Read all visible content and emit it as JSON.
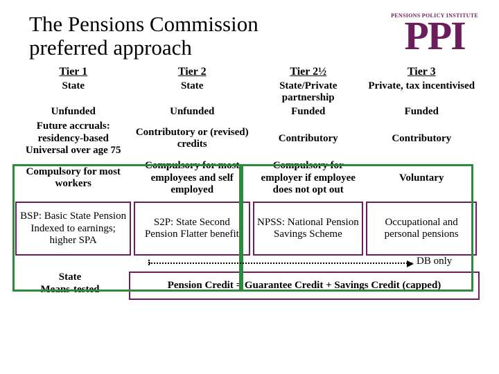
{
  "colors": {
    "brand": "#6b1d5c",
    "frame": "#2d8a3d",
    "text": "#000000",
    "bg": "#ffffff"
  },
  "header": {
    "title_line1": "The Pensions Commission",
    "title_line2": "preferred approach",
    "logo_tag": "PENSIONS POLICY INSTITUTE",
    "logo": "PPI"
  },
  "tiers": {
    "t1": "Tier 1",
    "t2": "Tier 2",
    "t3": "Tier 2½",
    "t4": "Tier 3"
  },
  "provider": {
    "t1": "State",
    "t2": "State",
    "t3": "State/Private partnership",
    "t4": "Private, tax incentivised"
  },
  "funding": {
    "t1": "Unfunded",
    "t2": "Unfunded",
    "t3": "Funded",
    "t4": "Funded"
  },
  "contrib": {
    "t1": "Future accruals: residency-based Universal over age 75",
    "t2": "Contributory or (revised) credits",
    "t3": "Contributory",
    "t4": "Contributory"
  },
  "compul": {
    "t1": "Compulsory for most workers",
    "t2": "Compulsory for most employees and self employed",
    "t3": "Compulsory for employer if employee does not opt out",
    "t4": "Voluntary"
  },
  "schemes": {
    "t1": "BSP: Basic State Pension Indexed to earnings; higher SPA",
    "t2": "S2P: State Second Pension Flatter benefit",
    "t3": "NPSS: National Pension Savings Scheme",
    "t4": "Occupational and personal pensions"
  },
  "db_label": "DB only",
  "footer": {
    "left_line1": "State",
    "left_line2": "Means-tested",
    "box": "Pension Credit = Guarantee Credit + Savings Credit (capped)"
  }
}
